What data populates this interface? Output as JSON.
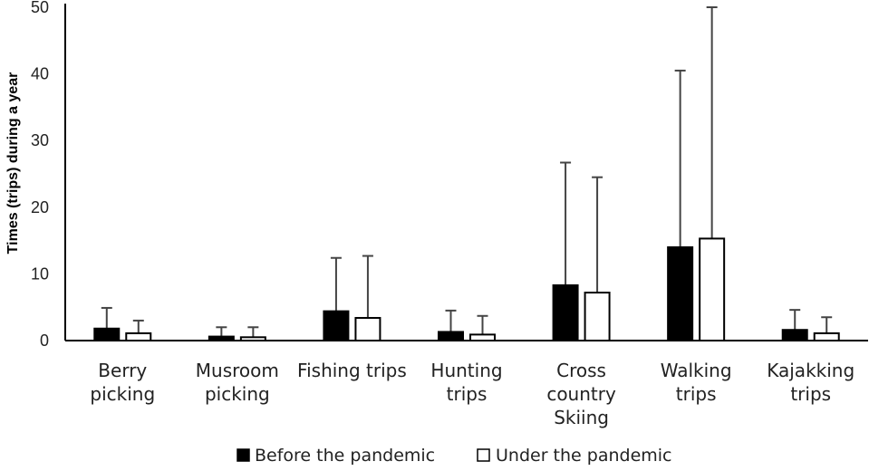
{
  "chart_data": {
    "type": "bar",
    "ylabel": "Times (trips) during a year",
    "xlabel": "",
    "ylim": [
      0,
      50
    ],
    "yticks": [
      0,
      10,
      20,
      30,
      40,
      50
    ],
    "grid": false,
    "legend_position": "bottom",
    "categories": [
      [
        "Berry",
        "picking"
      ],
      [
        "Musroom",
        "picking"
      ],
      [
        "Fishing trips"
      ],
      [
        "Hunting",
        "trips"
      ],
      [
        "Cross",
        "country",
        "Skiing"
      ],
      [
        "Walking",
        "trips"
      ],
      [
        "Kajakking",
        "trips"
      ]
    ],
    "series": [
      {
        "name": "Before the pandemic",
        "color": "#000000",
        "fill": "solid",
        "values": [
          1.8,
          0.6,
          4.4,
          1.3,
          8.3,
          14.0,
          1.6
        ],
        "error_upper": [
          4.9,
          2.0,
          12.4,
          4.5,
          26.7,
          40.5,
          4.6
        ]
      },
      {
        "name": "Under the pandemic",
        "color": "#ffffff",
        "fill": "hollow",
        "values": [
          1.1,
          0.5,
          3.4,
          0.9,
          7.2,
          15.3,
          1.1
        ],
        "error_upper": [
          3.0,
          2.0,
          12.7,
          3.7,
          24.5,
          50.0,
          3.5
        ]
      }
    ]
  }
}
